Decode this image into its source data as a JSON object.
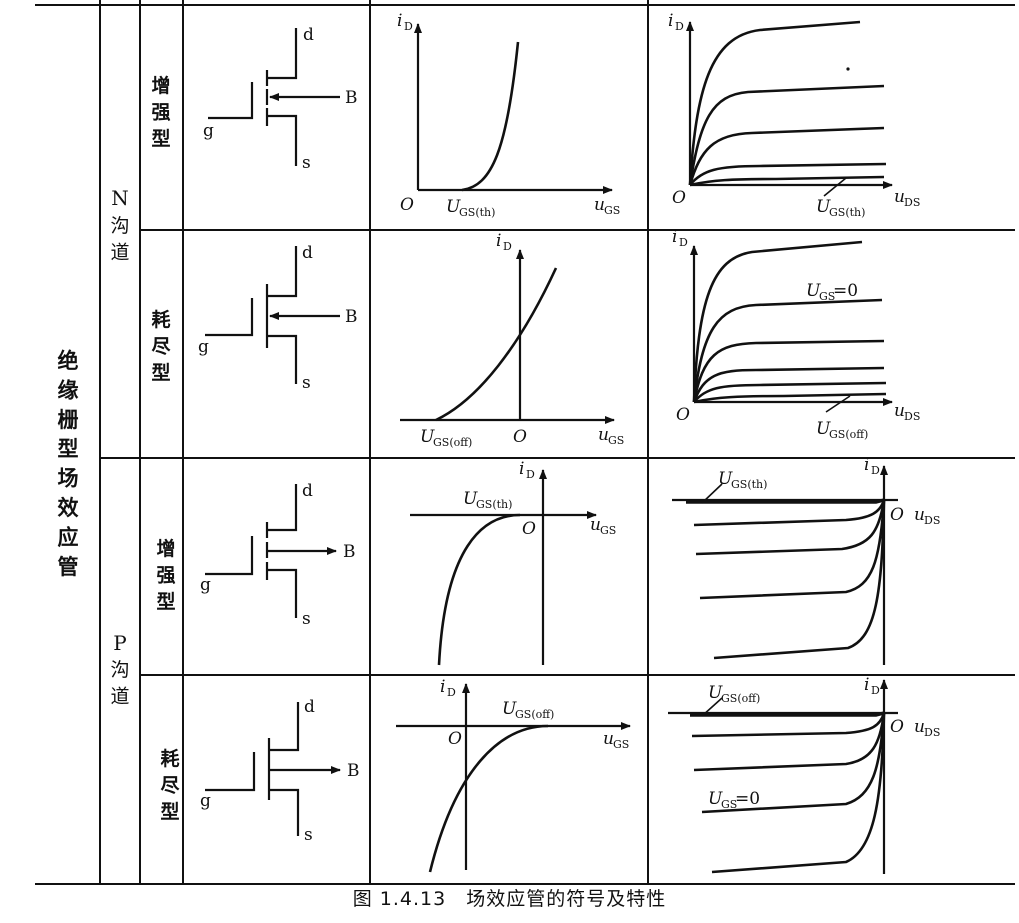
{
  "category": "绝缘栅型场效应管",
  "n_channel": {
    "type": "N",
    "label": "沟道"
  },
  "p_channel": {
    "type": "P",
    "label": "沟道"
  },
  "enhancement": "增强型",
  "depletion": "耗尽型",
  "terminals": {
    "drain": "d",
    "gate": "g",
    "source": "s",
    "bulk": "B"
  },
  "axes": {
    "id_sym": "i",
    "id_sub": "D",
    "ugs_sym": "u",
    "ugs_sub": "GS",
    "uds_sym": "u",
    "uds_sub": "DS",
    "origin": "O"
  },
  "labels": {
    "U": "U",
    "ugs_th_sub": "GS(th)",
    "ugs_off_sub": "GS(off)",
    "ugs_zero_sub": "GS",
    "ugs_zero_val": "=0"
  },
  "caption": "图 1.4.13　场效应管的符号及特性"
}
